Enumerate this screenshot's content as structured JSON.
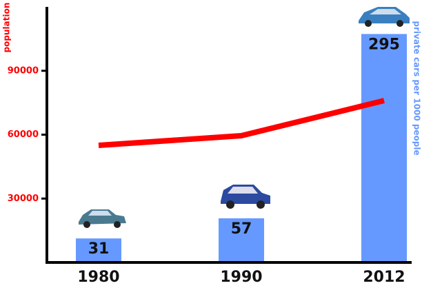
{
  "chart_data": {
    "type": "bar",
    "categories": [
      "1980",
      "1990",
      "2012"
    ],
    "series": [
      {
        "type": "bar",
        "color": "#6699ff",
        "axis": "y2",
        "values": [
          31,
          57,
          295
        ]
      },
      {
        "type": "line",
        "color": "#ff0000",
        "values": [
          55000,
          59500,
          76000
        ]
      }
    ],
    "ylabel": "population",
    "y2label": "private cars per 1000 people",
    "ylim": [
      0,
      120000
    ],
    "yticks": [
      30000,
      60000,
      90000
    ],
    "y2lim": [
      0,
      330
    ]
  }
}
